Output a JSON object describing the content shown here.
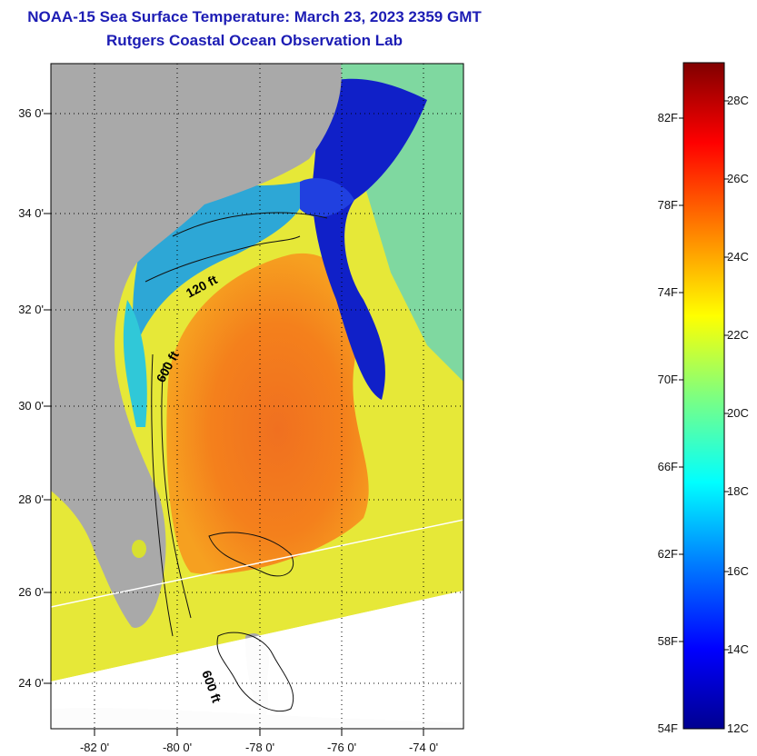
{
  "title": "NOAA-15 Sea Surface Temperature:  March 23, 2023 2359 GMT",
  "subtitle": "Rutgers Coastal Ocean Observation Lab",
  "lat_ticks": [
    "36 0'",
    "34 0'",
    "32 0'",
    "30 0'",
    "28 0'",
    "26 0'",
    "24 0'"
  ],
  "lon_ticks": [
    "-82 0'",
    "-80 0'",
    "-78 0'",
    "-76 0'",
    "-74 0'"
  ],
  "isobaths": {
    "a": "120 ft",
    "b": "600 ft",
    "c": "600 ft"
  },
  "colorbar": {
    "fahrenheit": [
      "82F",
      "78F",
      "74F",
      "70F",
      "66F",
      "62F",
      "58F",
      "54F"
    ],
    "celsius": [
      "28C",
      "26C",
      "24C",
      "22C",
      "20C",
      "18C",
      "16C",
      "14C",
      "12C"
    ],
    "colors": [
      "#000090",
      "#0000ff",
      "#007fff",
      "#00ffff",
      "#7fff7f",
      "#ffff00",
      "#ff7f00",
      "#ff0000",
      "#800000"
    ]
  },
  "palette": {
    "land": "#a9a9a9",
    "title": "#1c1cb4"
  }
}
